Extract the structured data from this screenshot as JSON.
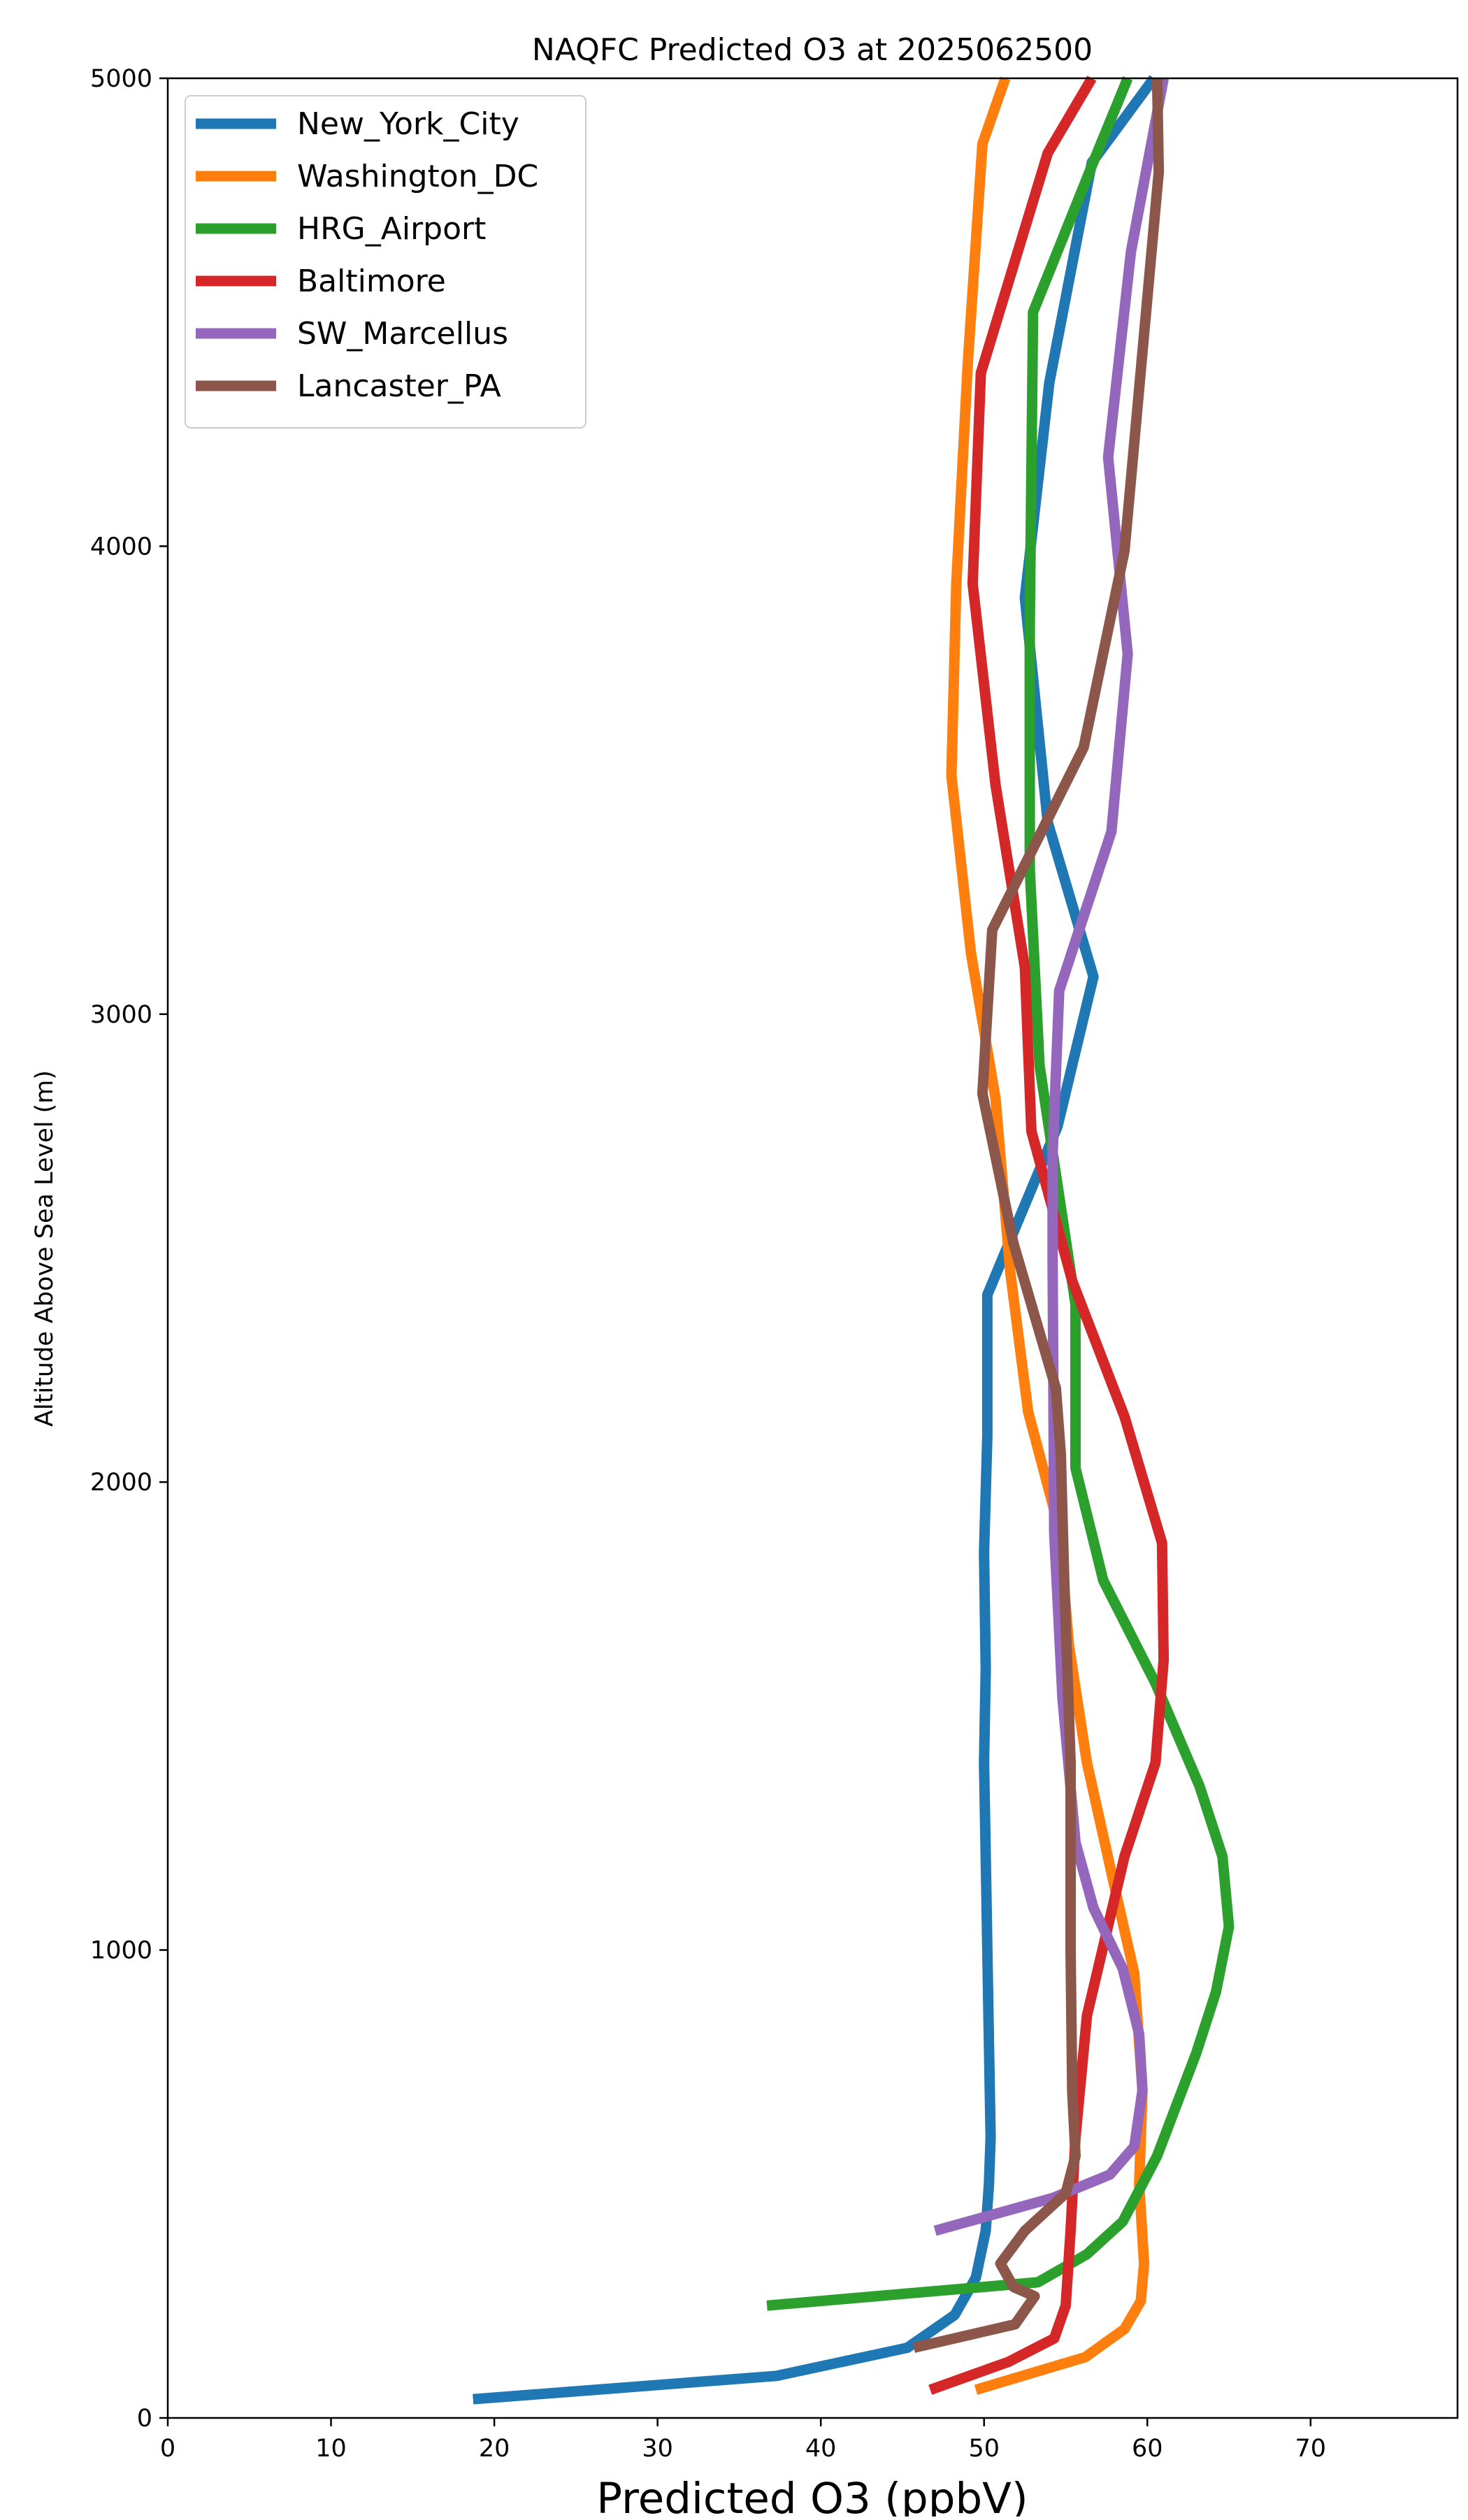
{
  "chart_data": {
    "type": "line",
    "title": "NAQFC Predicted O3 at 2025062500",
    "xlabel": "Predicted O3 (ppbV)",
    "ylabel": "Altitude Above Sea Level (m)",
    "xlim": [
      0,
      79
    ],
    "ylim": [
      0,
      5000
    ],
    "xticks": [
      0,
      10,
      20,
      30,
      40,
      50,
      60,
      70
    ],
    "yticks": [
      0,
      1000,
      2000,
      3000,
      4000,
      5000
    ],
    "grid": false,
    "legend_position": "upper-left",
    "series": [
      {
        "name": "New_York_City",
        "color": "#1f77b4",
        "points": [
          [
            18.7,
            40
          ],
          [
            37.3,
            90
          ],
          [
            45.3,
            150
          ],
          [
            48.2,
            220
          ],
          [
            49.5,
            300
          ],
          [
            50.1,
            400
          ],
          [
            50.3,
            500
          ],
          [
            50.4,
            600
          ],
          [
            50.3,
            800
          ],
          [
            50.2,
            1000
          ],
          [
            50.1,
            1200
          ],
          [
            50.0,
            1400
          ],
          [
            50.1,
            1600
          ],
          [
            50.0,
            1850
          ],
          [
            50.2,
            2100
          ],
          [
            50.2,
            2400
          ],
          [
            54.5,
            2760
          ],
          [
            56.7,
            3080
          ],
          [
            53.9,
            3410
          ],
          [
            52.5,
            3890
          ],
          [
            54.0,
            4350
          ],
          [
            56.6,
            4820
          ],
          [
            60.4,
            5000
          ]
        ]
      },
      {
        "name": "Washington_DC",
        "color": "#ff7f0e",
        "points": [
          [
            49.5,
            60
          ],
          [
            56.2,
            130
          ],
          [
            58.6,
            190
          ],
          [
            59.6,
            250
          ],
          [
            59.8,
            330
          ],
          [
            59.5,
            500
          ],
          [
            59.7,
            700
          ],
          [
            59.2,
            950
          ],
          [
            57.9,
            1150
          ],
          [
            56.3,
            1400
          ],
          [
            55.2,
            1650
          ],
          [
            54.6,
            1900
          ],
          [
            52.7,
            2150
          ],
          [
            51.6,
            2450
          ],
          [
            50.7,
            2820
          ],
          [
            49.2,
            3130
          ],
          [
            48.0,
            3510
          ],
          [
            48.3,
            3920
          ],
          [
            49.0,
            4390
          ],
          [
            49.9,
            4860
          ],
          [
            51.3,
            5000
          ]
        ]
      },
      {
        "name": "HRG_Airport",
        "color": "#2ca02c",
        "points": [
          [
            36.7,
            240
          ],
          [
            53.3,
            290
          ],
          [
            56.3,
            350
          ],
          [
            58.5,
            420
          ],
          [
            60.6,
            560
          ],
          [
            63.0,
            780
          ],
          [
            64.2,
            910
          ],
          [
            65.0,
            1050
          ],
          [
            64.6,
            1200
          ],
          [
            63.2,
            1350
          ],
          [
            60.5,
            1570
          ],
          [
            57.3,
            1790
          ],
          [
            55.6,
            2030
          ],
          [
            55.6,
            2380
          ],
          [
            53.4,
            2890
          ],
          [
            52.8,
            3310
          ],
          [
            52.8,
            3830
          ],
          [
            53.0,
            4500
          ],
          [
            56.8,
            4830
          ],
          [
            58.8,
            5000
          ]
        ]
      },
      {
        "name": "Baltimore",
        "color": "#d62728",
        "points": [
          [
            46.7,
            60
          ],
          [
            51.5,
            120
          ],
          [
            54.3,
            170
          ],
          [
            55.0,
            240
          ],
          [
            55.3,
            400
          ],
          [
            55.6,
            600
          ],
          [
            56.3,
            860
          ],
          [
            58.6,
            1200
          ],
          [
            60.5,
            1400
          ],
          [
            61.0,
            1620
          ],
          [
            60.9,
            1870
          ],
          [
            58.6,
            2140
          ],
          [
            55.4,
            2430
          ],
          [
            52.9,
            2750
          ],
          [
            52.5,
            3100
          ],
          [
            50.7,
            3490
          ],
          [
            49.3,
            3920
          ],
          [
            49.8,
            4370
          ],
          [
            53.9,
            4840
          ],
          [
            56.6,
            5000
          ]
        ]
      },
      {
        "name": "SW_Marcellus",
        "color": "#9467bd",
        "points": [
          [
            47.0,
            400
          ],
          [
            54.2,
            470
          ],
          [
            57.7,
            520
          ],
          [
            59.2,
            580
          ],
          [
            59.7,
            700
          ],
          [
            59.5,
            820
          ],
          [
            58.5,
            960
          ],
          [
            56.7,
            1090
          ],
          [
            55.6,
            1230
          ],
          [
            54.8,
            1540
          ],
          [
            54.3,
            1890
          ],
          [
            54.2,
            2470
          ],
          [
            54.2,
            2700
          ],
          [
            54.6,
            3050
          ],
          [
            57.8,
            3390
          ],
          [
            58.8,
            3770
          ],
          [
            57.6,
            4190
          ],
          [
            59.0,
            4630
          ],
          [
            61.0,
            5000
          ]
        ]
      },
      {
        "name": "Lancaster_PA",
        "color": "#8c564b",
        "points": [
          [
            45.7,
            150
          ],
          [
            51.9,
            200
          ],
          [
            53.1,
            260
          ],
          [
            51.8,
            280
          ],
          [
            51.0,
            330
          ],
          [
            52.5,
            400
          ],
          [
            55.0,
            480
          ],
          [
            55.6,
            560
          ],
          [
            55.4,
            700
          ],
          [
            55.3,
            1000
          ],
          [
            55.3,
            1200
          ],
          [
            55.3,
            1400
          ],
          [
            54.9,
            1800
          ],
          [
            54.7,
            2060
          ],
          [
            54.4,
            2200
          ],
          [
            51.8,
            2510
          ],
          [
            49.9,
            2830
          ],
          [
            50.5,
            3180
          ],
          [
            56.1,
            3570
          ],
          [
            58.6,
            3990
          ],
          [
            60.7,
            4800
          ],
          [
            60.6,
            5000
          ]
        ]
      }
    ]
  }
}
